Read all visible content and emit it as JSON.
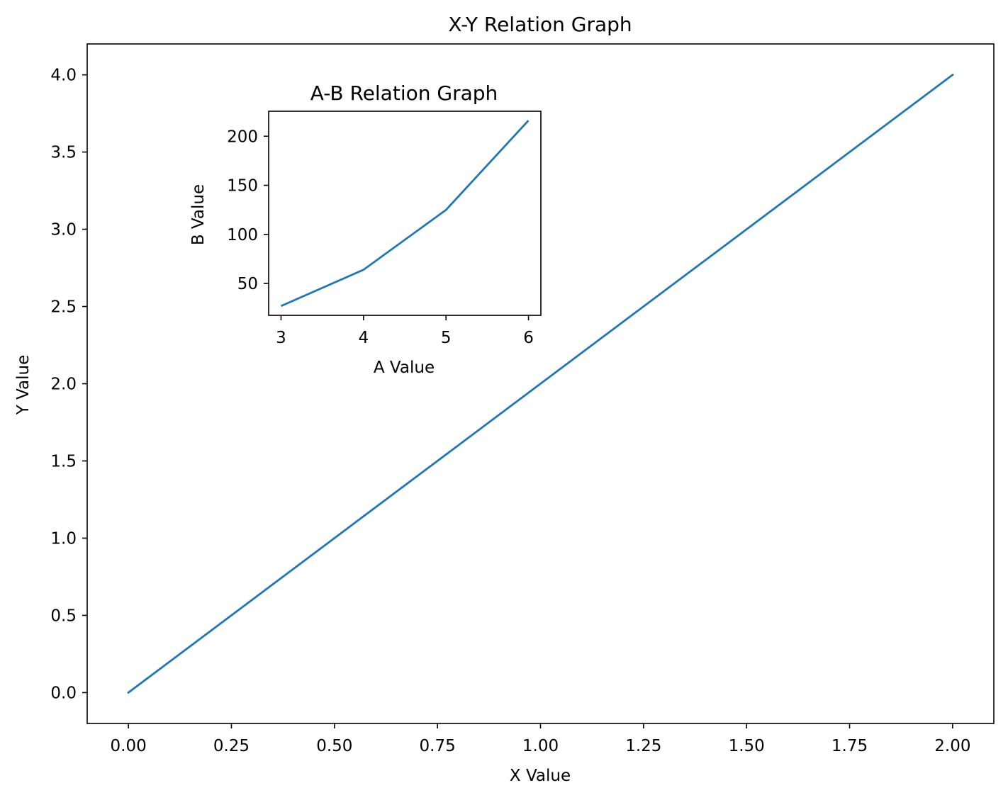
{
  "chart_data": [
    {
      "type": "line",
      "title": "X-Y Relation Graph",
      "xlabel": "X Value",
      "ylabel": "Y Value",
      "xlim": [
        -0.1,
        2.1
      ],
      "ylim": [
        -0.2,
        4.2
      ],
      "xticks": [
        0.0,
        0.25,
        0.5,
        0.75,
        1.0,
        1.25,
        1.5,
        1.75,
        2.0
      ],
      "xtick_labels": [
        "0.00",
        "0.25",
        "0.50",
        "0.75",
        "1.00",
        "1.25",
        "1.50",
        "1.75",
        "2.00"
      ],
      "yticks": [
        0.0,
        0.5,
        1.0,
        1.5,
        2.0,
        2.5,
        3.0,
        3.5,
        4.0
      ],
      "ytick_labels": [
        "0.0",
        "0.5",
        "1.0",
        "1.5",
        "2.0",
        "2.5",
        "3.0",
        "3.5",
        "4.0"
      ],
      "grid": false,
      "series": [
        {
          "x": [
            0,
            2
          ],
          "y": [
            0,
            4
          ],
          "color": "#1f77b4"
        }
      ]
    },
    {
      "type": "line",
      "title": "A-B Relation Graph",
      "xlabel": "A Value",
      "ylabel": "B Value",
      "xlim": [
        2.85,
        6.15
      ],
      "ylim": [
        17.55,
        225.45
      ],
      "xticks": [
        3,
        4,
        5,
        6
      ],
      "xtick_labels": [
        "3",
        "4",
        "5",
        "6"
      ],
      "yticks": [
        50,
        100,
        150,
        200
      ],
      "ytick_labels": [
        "50",
        "100",
        "150",
        "200"
      ],
      "grid": false,
      "series": [
        {
          "x": [
            3,
            4,
            5,
            6
          ],
          "y": [
            27,
            64,
            125,
            216
          ],
          "color": "#1f77b4"
        }
      ]
    }
  ]
}
